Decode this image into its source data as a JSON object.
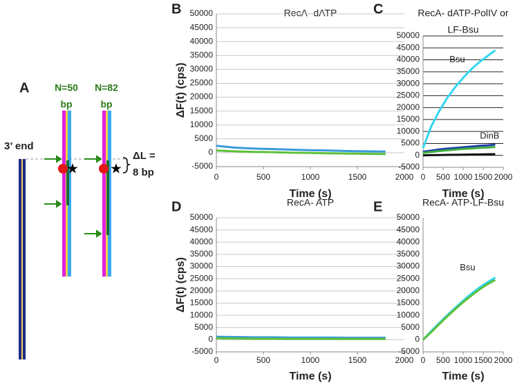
{
  "diagram": {
    "panel": "A",
    "strands": [
      {
        "label": "N=50",
        "unit": "bp"
      },
      {
        "label": "N=82",
        "unit": "bp"
      }
    ],
    "end_label": "3’ end",
    "delta_label": "ΔL =",
    "delta_value": "8 bp"
  },
  "chart_data": [
    {
      "type": "line",
      "panel": "B",
      "title": [
        "RecA- dATP"
      ],
      "ylabel": "ΔF(t) (cps)",
      "xlabel": "Time (s)",
      "xlim": [
        0,
        2000
      ],
      "xticks": [
        0,
        500,
        1000,
        1500,
        2000
      ],
      "ylim": [
        -5000,
        50000
      ],
      "yticks": [
        -5000,
        0,
        5000,
        10000,
        15000,
        20000,
        25000,
        30000,
        35000,
        40000,
        45000,
        50000
      ],
      "grid": true,
      "grid_color": "#c8c8c8",
      "x": [
        0,
        200,
        400,
        600,
        800,
        1000,
        1200,
        1400,
        1600,
        1800
      ],
      "series": [
        {
          "color": "#3a9ad9",
          "values": [
            2500,
            1800,
            1500,
            1300,
            1100,
            900,
            800,
            600,
            500,
            400
          ]
        },
        {
          "color": "#5cc03a",
          "values": [
            800,
            500,
            300,
            200,
            0,
            -100,
            -200,
            -300,
            -400,
            -500
          ]
        }
      ]
    },
    {
      "type": "line",
      "panel": "C",
      "title": [
        "RecA- dATP-PolIV or",
        "LF-Bsu"
      ],
      "xlabel": "Time (s)",
      "xlim": [
        0,
        2000
      ],
      "xticks": [
        0,
        500,
        1000,
        1500,
        2000
      ],
      "ylim": [
        -5000,
        50000
      ],
      "yticks": [
        -5000,
        0,
        5000,
        10000,
        15000,
        20000,
        25000,
        30000,
        35000,
        40000,
        45000,
        50000
      ],
      "grid": true,
      "grid_color": "#222222",
      "x": [
        0,
        200,
        400,
        600,
        800,
        1000,
        1200,
        1400,
        1600,
        1800
      ],
      "series": [
        {
          "name": "Bsu",
          "color": "#33d6f0",
          "values": [
            3000,
            12000,
            18500,
            24000,
            28500,
            32500,
            36000,
            39000,
            41500,
            44000
          ]
        },
        {
          "name": "DinB",
          "color": "#1f3fa8",
          "values": [
            1500,
            2000,
            2500,
            2800,
            3100,
            3400,
            3700,
            4000,
            4200,
            4500
          ]
        },
        {
          "color": "#40b040",
          "values": [
            1000,
            1400,
            1800,
            2100,
            2400,
            2700,
            2900,
            3100,
            3300,
            3500
          ]
        },
        {
          "color": "#111111",
          "values": [
            0,
            100,
            150,
            200,
            250,
            300,
            350,
            400,
            450,
            500
          ]
        }
      ]
    },
    {
      "type": "line",
      "panel": "D",
      "title": [
        "RecA- ATP"
      ],
      "ylabel": "ΔF(t) (cps)",
      "xlabel": "Time (s)",
      "xlim": [
        0,
        2000
      ],
      "xticks": [
        0,
        500,
        1000,
        1500,
        2000
      ],
      "ylim": [
        -5000,
        50000
      ],
      "yticks": [
        -5000,
        0,
        5000,
        10000,
        15000,
        20000,
        25000,
        30000,
        35000,
        40000,
        45000,
        50000
      ],
      "grid": true,
      "grid_color": "#c8c8c8",
      "x": [
        0,
        200,
        400,
        600,
        800,
        1000,
        1200,
        1400,
        1600,
        1800
      ],
      "series": [
        {
          "color": "#3a9ad9",
          "values": [
            1200,
            1100,
            1000,
            1000,
            900,
            900,
            900,
            800,
            800,
            800
          ]
        },
        {
          "color": "#5cc03a",
          "values": [
            600,
            500,
            400,
            400,
            300,
            300,
            300,
            300,
            300,
            300
          ]
        }
      ]
    },
    {
      "type": "line",
      "panel": "E",
      "title": [
        "RecA- ATP-LF-Bsu"
      ],
      "xlabel": "Time (s)",
      "xlim": [
        0,
        2000
      ],
      "xticks": [
        0,
        500,
        1000,
        1500,
        2000
      ],
      "ylim": [
        -5000,
        50000
      ],
      "yticks": [
        -5000,
        0,
        5000,
        10000,
        15000,
        20000,
        25000,
        30000,
        35000,
        40000,
        45000,
        50000
      ],
      "grid": false,
      "x": [
        0,
        200,
        400,
        600,
        800,
        1000,
        1200,
        1400,
        1600,
        1800
      ],
      "series": [
        {
          "name": "Bsu",
          "color": "#33d6f0",
          "values": [
            0,
            3500,
            6800,
            10000,
            13000,
            16000,
            18800,
            21300,
            23500,
            25500
          ]
        },
        {
          "color": "#5cc03a",
          "values": [
            0,
            3000,
            6300,
            9500,
            12500,
            15400,
            18000,
            20500,
            22700,
            24500
          ]
        }
      ]
    }
  ]
}
